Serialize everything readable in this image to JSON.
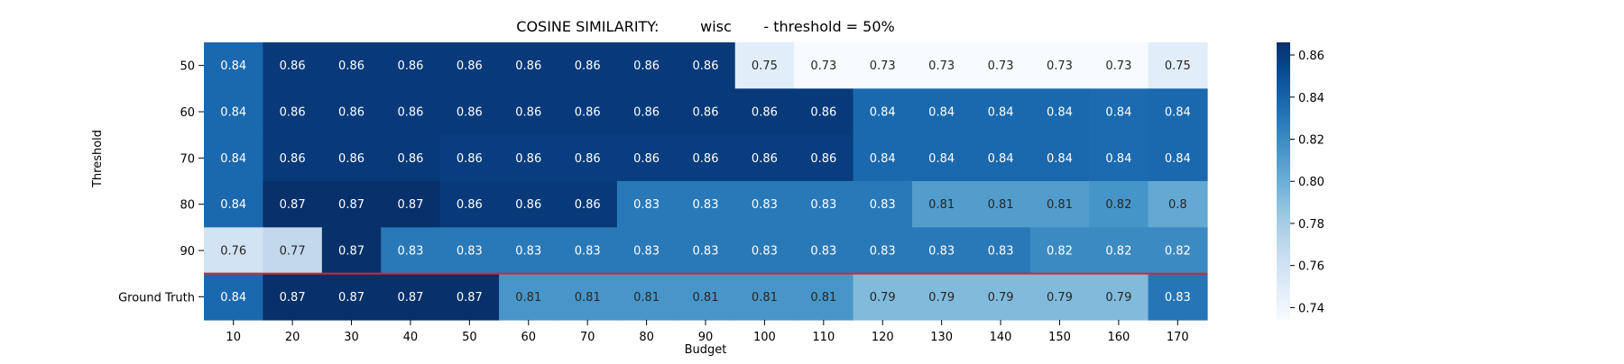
{
  "chart_data": {
    "type": "heatmap",
    "title": "COSINE SIMILARITY:         wisc       - threshold = 50%",
    "xlabel": "Budget",
    "ylabel": "Threshold",
    "x_categories": [
      "10",
      "20",
      "30",
      "40",
      "50",
      "60",
      "70",
      "80",
      "90",
      "100",
      "110",
      "120",
      "130",
      "140",
      "150",
      "160",
      "170"
    ],
    "y_categories": [
      "50",
      "60",
      "70",
      "80",
      "90",
      "Ground Truth"
    ],
    "values": [
      [
        0.84,
        0.86,
        0.86,
        0.86,
        0.86,
        0.86,
        0.86,
        0.86,
        0.86,
        0.75,
        0.73,
        0.73,
        0.73,
        0.73,
        0.73,
        0.73,
        0.75
      ],
      [
        0.84,
        0.86,
        0.86,
        0.86,
        0.86,
        0.86,
        0.86,
        0.86,
        0.86,
        0.86,
        0.86,
        0.84,
        0.84,
        0.84,
        0.84,
        0.84,
        0.84
      ],
      [
        0.84,
        0.86,
        0.86,
        0.86,
        0.86,
        0.86,
        0.86,
        0.86,
        0.86,
        0.86,
        0.86,
        0.84,
        0.84,
        0.84,
        0.84,
        0.84,
        0.84
      ],
      [
        0.84,
        0.87,
        0.87,
        0.87,
        0.86,
        0.86,
        0.86,
        0.83,
        0.83,
        0.83,
        0.83,
        0.83,
        0.81,
        0.81,
        0.81,
        0.82,
        0.8
      ],
      [
        0.76,
        0.77,
        0.87,
        0.83,
        0.83,
        0.83,
        0.83,
        0.83,
        0.83,
        0.83,
        0.83,
        0.83,
        0.83,
        0.83,
        0.82,
        0.82,
        0.82
      ],
      [
        0.84,
        0.87,
        0.87,
        0.87,
        0.87,
        0.81,
        0.81,
        0.81,
        0.81,
        0.81,
        0.81,
        0.79,
        0.79,
        0.79,
        0.79,
        0.79,
        0.83
      ]
    ],
    "cell_values": [
      [
        0.8375,
        0.861,
        0.861,
        0.861,
        0.861,
        0.861,
        0.861,
        0.861,
        0.861,
        0.7485,
        0.7342,
        0.7342,
        0.7342,
        0.7342,
        0.7342,
        0.7342,
        0.7485
      ],
      [
        0.8375,
        0.861,
        0.861,
        0.861,
        0.861,
        0.861,
        0.861,
        0.861,
        0.861,
        0.861,
        0.861,
        0.8374,
        0.8374,
        0.8374,
        0.8374,
        0.8364,
        0.8374
      ],
      [
        0.8375,
        0.861,
        0.861,
        0.861,
        0.8592,
        0.8592,
        0.8592,
        0.8592,
        0.8592,
        0.8592,
        0.8592,
        0.8374,
        0.8374,
        0.8374,
        0.8374,
        0.8364,
        0.8374
      ],
      [
        0.8375,
        0.866,
        0.866,
        0.866,
        0.861,
        0.861,
        0.861,
        0.829,
        0.829,
        0.829,
        0.829,
        0.829,
        0.81,
        0.81,
        0.81,
        0.815,
        0.803
      ],
      [
        0.759,
        0.769,
        0.866,
        0.829,
        0.829,
        0.829,
        0.829,
        0.829,
        0.829,
        0.829,
        0.829,
        0.829,
        0.829,
        0.829,
        0.82,
        0.82,
        0.82
      ],
      [
        0.8375,
        0.866,
        0.866,
        0.866,
        0.866,
        0.814,
        0.814,
        0.814,
        0.814,
        0.814,
        0.814,
        0.793,
        0.793,
        0.793,
        0.793,
        0.793,
        0.831
      ]
    ],
    "colormap": "Blues",
    "color_range": [
      0.7342,
      0.866
    ],
    "colorbar_ticks": [
      "0.74",
      "0.76",
      "0.78",
      "0.80",
      "0.82",
      "0.84",
      "0.86"
    ],
    "separator_below_row": "90",
    "separator_color": "#d62728"
  }
}
